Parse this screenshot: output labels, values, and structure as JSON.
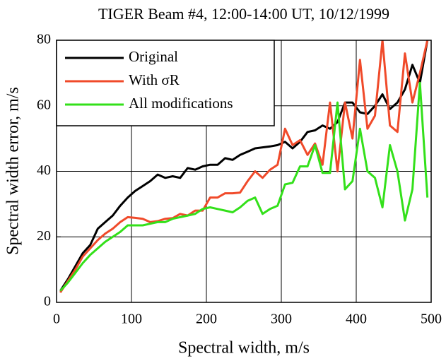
{
  "chart_data": {
    "type": "line",
    "title": "TIGER Beam #4, 12:00-14:00 UT, 10/12/1999",
    "x_label": "Spectral width, m/s",
    "y_label": "Spectral width error, m/s",
    "x": [
      5,
      15,
      25,
      35,
      45,
      55,
      65,
      75,
      85,
      95,
      105,
      115,
      125,
      135,
      145,
      155,
      165,
      175,
      185,
      195,
      205,
      215,
      225,
      235,
      245,
      255,
      265,
      275,
      285,
      295,
      305,
      315,
      325,
      335,
      345,
      355,
      365,
      375,
      385,
      395,
      405,
      415,
      425,
      435,
      445,
      455,
      465,
      475,
      485,
      495
    ],
    "series": [
      {
        "name": "Original",
        "color": "#000000",
        "values": [
          3.5,
          7,
          11,
          15,
          17.5,
          22.5,
          24.5,
          26.5,
          29.5,
          32,
          34,
          35.5,
          37,
          39,
          38,
          38.5,
          38,
          41,
          40.5,
          41.5,
          42,
          42,
          44,
          43.5,
          45,
          46,
          47,
          47.3,
          47.6,
          48,
          49,
          47,
          49,
          52,
          52.5,
          54,
          53,
          55,
          61,
          61,
          58,
          57.5,
          60,
          63.5,
          59,
          61,
          65,
          72.5,
          67,
          80
        ]
      },
      {
        "name": "With σR",
        "color": "#f04a2a",
        "values": [
          3,
          6.5,
          10,
          14,
          16.5,
          19,
          21,
          22.5,
          24.5,
          26,
          25.8,
          25.5,
          24.5,
          24.8,
          25.5,
          25.7,
          27,
          26.5,
          28,
          28,
          32,
          32,
          33.3,
          33.3,
          33.5,
          37,
          40,
          38,
          40.5,
          42,
          53,
          48,
          49.5,
          45,
          48.5,
          42,
          61,
          40,
          61,
          50,
          74,
          53,
          57,
          80,
          54,
          52,
          76,
          61,
          70,
          80
        ]
      },
      {
        "name": "All modifications",
        "color": "#33e01a",
        "values": [
          3.5,
          6,
          9,
          12,
          14.5,
          16.5,
          18.5,
          20,
          21.5,
          23.5,
          23.5,
          23.5,
          24,
          24.5,
          24.5,
          25.5,
          26,
          26.5,
          27,
          28.5,
          29,
          28.5,
          28,
          27.5,
          29,
          31,
          32,
          27,
          28.5,
          29.5,
          36,
          36.5,
          41.5,
          41.5,
          48,
          39.5,
          39.5,
          61,
          34.5,
          37,
          53,
          40,
          38,
          29,
          48,
          40,
          25,
          34.5,
          67,
          32
        ]
      }
    ],
    "xlim": [
      0,
      500
    ],
    "xticks": [
      0,
      100,
      200,
      300,
      400,
      500
    ],
    "ylim": [
      0,
      80
    ],
    "yticks": [
      0,
      20,
      40,
      60,
      80
    ],
    "grid": true,
    "legend": "upper left"
  }
}
